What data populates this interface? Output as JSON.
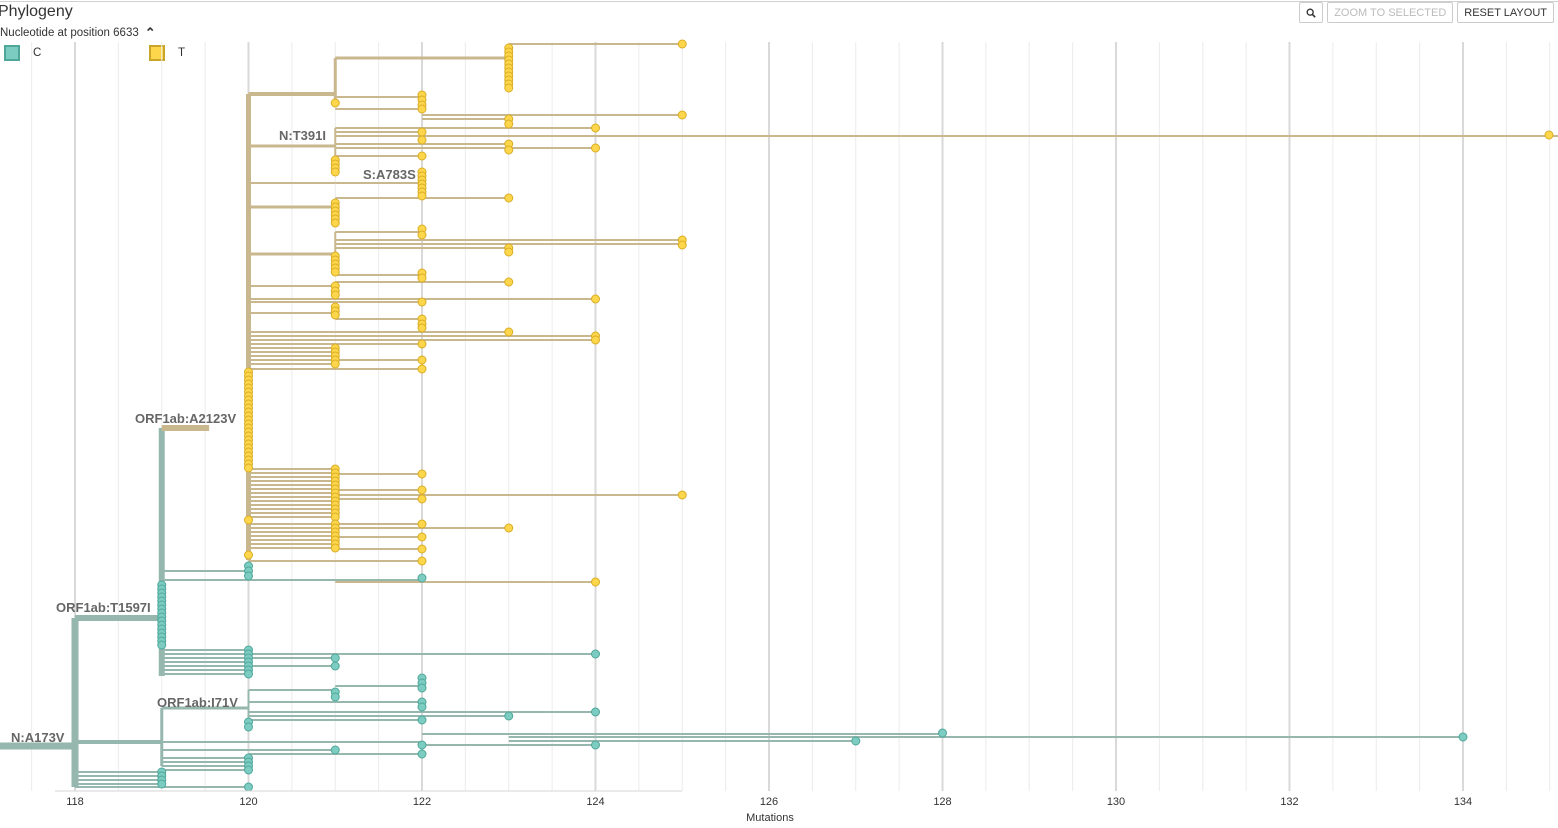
{
  "header": {
    "title": "Phylogeny",
    "subtitle": "Nucleotide at position 6633"
  },
  "legend": [
    {
      "label": "C",
      "color": "#7cccc2"
    },
    {
      "label": "T",
      "color": "#fdd64c"
    }
  ],
  "toolbar": {
    "zoom_icon": "magnifier-icon",
    "zoom_selected_label": "ZOOM TO SELECTED",
    "reset_layout_label": "RESET LAYOUT"
  },
  "colors": {
    "teal_branch": "#96b7ae",
    "tan_branch": "#c9b78e",
    "teal_tip": "#7cccc2",
    "yellow_tip": "#fdd64c",
    "grid": "#ececec",
    "grid_major": "#d9d9d9"
  },
  "axis": {
    "label": "Mutations",
    "ticks": [
      "118",
      "120",
      "122",
      "124",
      "126",
      "128",
      "130",
      "132",
      "134"
    ]
  },
  "mutation_labels": {
    "n_a173v": "N:A173V",
    "orf1ab_t1597i": "ORF1ab:T1597I",
    "orf1ab_i71v": "ORF1ab:I71V",
    "orf1ab_a2123v": "ORF1ab:A2123V",
    "n_t391i": "N:T391I",
    "s_a783s": "S:A783S"
  }
}
